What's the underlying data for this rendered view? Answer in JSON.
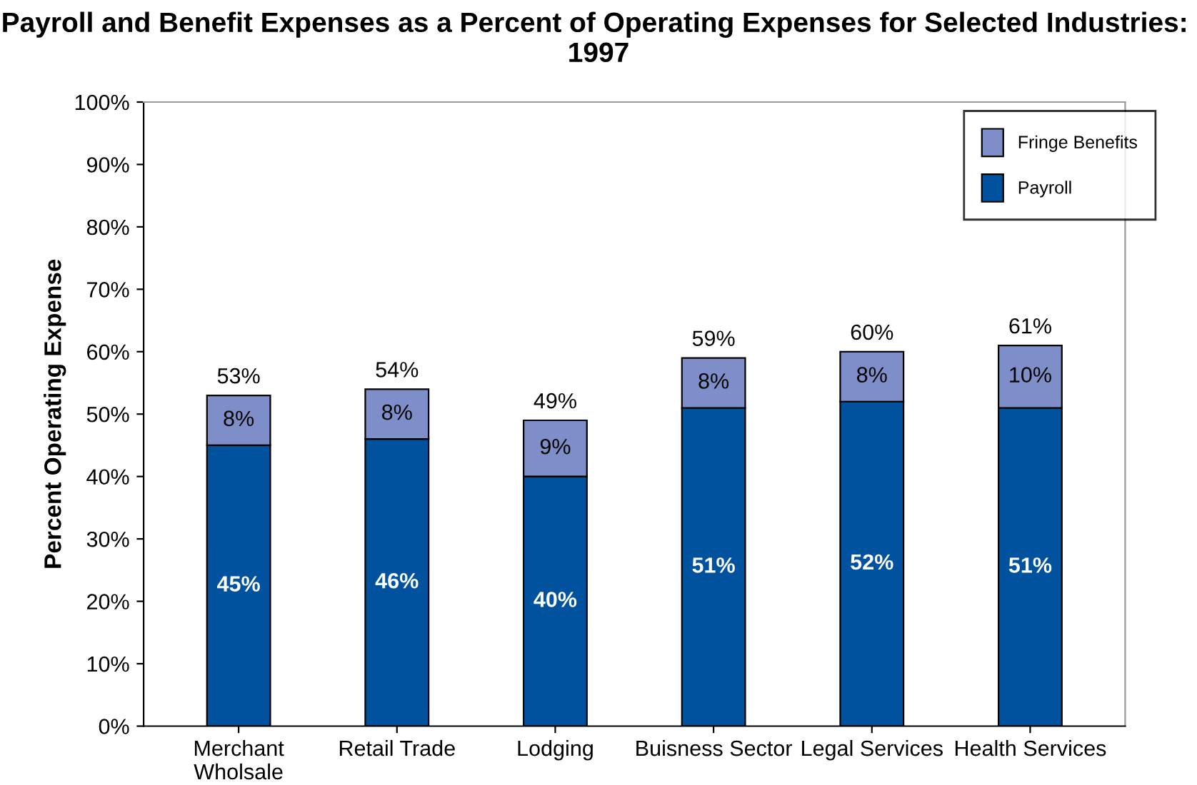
{
  "chart_data": {
    "type": "bar",
    "title": "Payroll and Benefit Expenses as a Percent of Operating Expenses for Selected Industries:  1997",
    "ylabel": "Percent Operating Expense",
    "categories": [
      "Merchant\nWholsale",
      "Retail Trade",
      "Lodging",
      "Buisness Sector",
      "Legal Services",
      "Health Services"
    ],
    "stacked": true,
    "series": [
      {
        "name": "Payroll",
        "color": "#00529f",
        "values": [
          45,
          46,
          40,
          51,
          52,
          51
        ],
        "value_labels": [
          "45%",
          "46%",
          "40%",
          "51%",
          "52%",
          "51%"
        ]
      },
      {
        "name": "Fringe Benefits",
        "color": "#7d8ec8",
        "values": [
          8,
          8,
          9,
          8,
          8,
          10
        ],
        "value_labels": [
          "8%",
          "8%",
          "9%",
          "8%",
          "8%",
          "10%"
        ]
      }
    ],
    "totals": [
      "53%",
      "54%",
      "49%",
      "59%",
      "60%",
      "61%"
    ],
    "ylim": [
      0,
      100
    ],
    "yticks": [
      {
        "value": 0,
        "label": "0%"
      },
      {
        "value": 10,
        "label": "10%"
      },
      {
        "value": 20,
        "label": "20%"
      },
      {
        "value": 30,
        "label": "30%"
      },
      {
        "value": 40,
        "label": "40%"
      },
      {
        "value": 50,
        "label": "50%"
      },
      {
        "value": 60,
        "label": "60%"
      },
      {
        "value": 70,
        "label": "70%"
      },
      {
        "value": 80,
        "label": "80%"
      },
      {
        "value": 90,
        "label": "90%"
      },
      {
        "value": 100,
        "label": "100%"
      }
    ],
    "legend": "top right",
    "grid": false
  }
}
